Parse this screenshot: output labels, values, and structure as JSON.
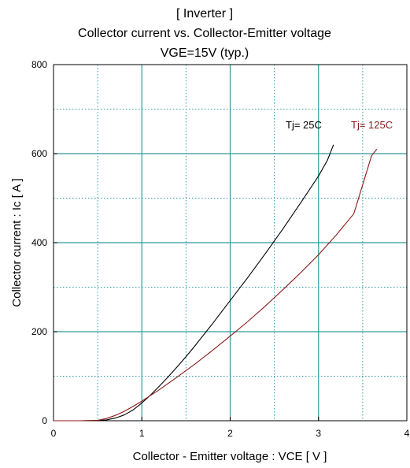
{
  "chart_data": {
    "type": "line",
    "title": [
      "[ Inverter ]",
      "Collector current  vs.  Collector-Emitter voltage",
      "VGE=15V  (typ.)"
    ],
    "xlabel": "Collector - Emitter voltage  :  VCE [ V ]",
    "ylabel": "Collector current  :  Ic  [ A ]",
    "xlim": [
      0,
      4
    ],
    "ylim": [
      0,
      800
    ],
    "x_ticks": [
      "0",
      "1",
      "2",
      "3",
      "4"
    ],
    "y_ticks": [
      "0",
      "200",
      "400",
      "600",
      "800"
    ],
    "grid": true,
    "series": [
      {
        "name": "Tj= 25C",
        "color": "#000000",
        "x": [
          0,
          0.3,
          0.5,
          0.6,
          0.7,
          0.8,
          0.9,
          1.0,
          1.1,
          1.2,
          1.3,
          1.4,
          1.5,
          1.6,
          1.7,
          1.8,
          1.9,
          2.0,
          2.2,
          2.4,
          2.6,
          2.8,
          3.0,
          3.1,
          3.17
        ],
        "y": [
          0,
          0,
          0.5,
          2,
          6,
          13,
          24,
          40,
          58,
          78,
          99,
          121,
          144,
          168,
          193,
          218,
          244,
          270,
          322,
          376,
          432,
          490,
          550,
          585,
          620
        ]
      },
      {
        "name": "Tj= 125C",
        "color": "#8b1a1a",
        "x": [
          0,
          0.3,
          0.5,
          0.6,
          0.7,
          0.8,
          0.9,
          1.0,
          1.2,
          1.4,
          1.6,
          1.8,
          2.0,
          2.2,
          2.4,
          2.6,
          2.8,
          3.0,
          3.2,
          3.4,
          3.6,
          3.66
        ],
        "y": [
          0,
          0,
          1,
          5,
          12,
          21,
          32,
          44,
          70,
          98,
          127,
          158,
          190,
          223,
          258,
          295,
          333,
          373,
          417,
          465,
          595,
          610
        ]
      }
    ]
  }
}
